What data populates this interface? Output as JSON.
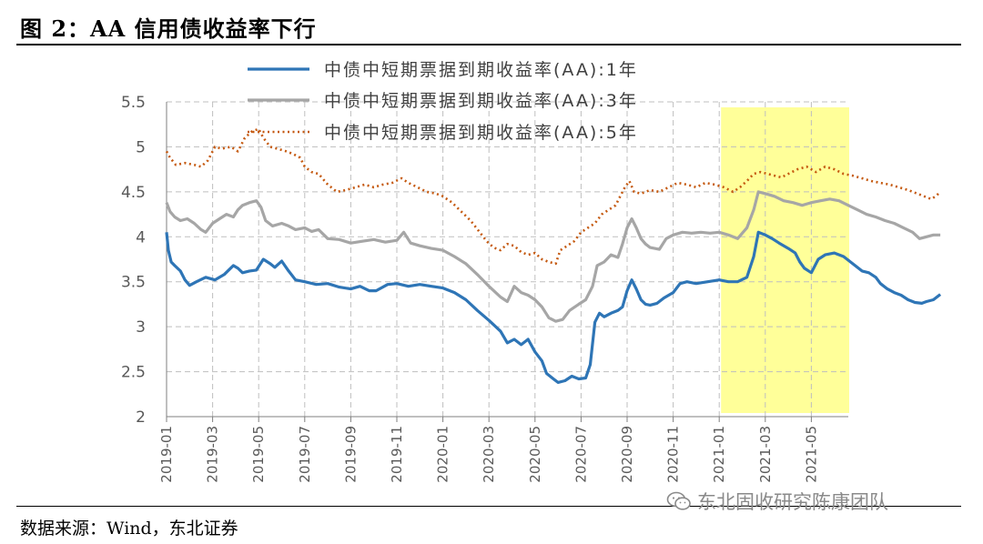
{
  "header": {
    "title": "图 2：AA 信用债收益率下行"
  },
  "footer": {
    "source": "数据来源：Wind，东北证券",
    "watermark": "东北固收研究陈康团队"
  },
  "icons": {
    "watermark_icon": "wechat-icon"
  },
  "colors": {
    "series_1y": "#2e75b6",
    "series_3y": "#a6a6a6",
    "series_5y": "#c55a11",
    "highlight": "#ffff99",
    "grid": "#bfbfbf"
  },
  "chart_data": {
    "type": "line",
    "title": "",
    "xlabel": "",
    "ylabel": "",
    "ylim": [
      2,
      5.5
    ],
    "yticks": [
      "2",
      "2.5",
      "3",
      "3.5",
      "4",
      "4.5",
      "5",
      "5.5"
    ],
    "xticks": [
      "2019-01",
      "2019-03",
      "2019-05",
      "2019-07",
      "2019-09",
      "2019-11",
      "2020-01",
      "2020-03",
      "2020-05",
      "2020-07",
      "2020-09",
      "2020-11",
      "2021-01",
      "2021-03",
      "2021-05"
    ],
    "grid": true,
    "legend_position": "top",
    "highlight_range": [
      "2021-01",
      "2021-06"
    ],
    "series": [
      {
        "name": "中债中短期票据到期收益率(AA):1年",
        "style": "solid",
        "points": [
          [
            0,
            4.05
          ],
          [
            0.08,
            3.85
          ],
          [
            0.2,
            3.72
          ],
          [
            0.35,
            3.68
          ],
          [
            0.6,
            3.62
          ],
          [
            0.8,
            3.52
          ],
          [
            1,
            3.46
          ],
          [
            1.3,
            3.5
          ],
          [
            1.7,
            3.55
          ],
          [
            2.1,
            3.52
          ],
          [
            2.5,
            3.58
          ],
          [
            2.9,
            3.68
          ],
          [
            3.1,
            3.65
          ],
          [
            3.3,
            3.6
          ],
          [
            3.6,
            3.62
          ],
          [
            3.9,
            3.63
          ],
          [
            4.2,
            3.75
          ],
          [
            4.5,
            3.7
          ],
          [
            4.7,
            3.66
          ],
          [
            5,
            3.73
          ],
          [
            5.3,
            3.62
          ],
          [
            5.6,
            3.52
          ],
          [
            6,
            3.5
          ],
          [
            6.5,
            3.47
          ],
          [
            7,
            3.48
          ],
          [
            7.5,
            3.44
          ],
          [
            8,
            3.42
          ],
          [
            8.4,
            3.45
          ],
          [
            8.8,
            3.4
          ],
          [
            9.1,
            3.4
          ],
          [
            9.6,
            3.47
          ],
          [
            10,
            3.48
          ],
          [
            10.5,
            3.45
          ],
          [
            11,
            3.47
          ],
          [
            11.5,
            3.45
          ],
          [
            12,
            3.43
          ],
          [
            12.5,
            3.38
          ],
          [
            13,
            3.3
          ],
          [
            13.5,
            3.18
          ],
          [
            14,
            3.07
          ],
          [
            14.5,
            2.95
          ],
          [
            14.8,
            2.82
          ],
          [
            15.1,
            2.86
          ],
          [
            15.4,
            2.8
          ],
          [
            15.7,
            2.86
          ],
          [
            16,
            2.72
          ],
          [
            16.3,
            2.62
          ],
          [
            16.5,
            2.48
          ],
          [
            16.8,
            2.42
          ],
          [
            17,
            2.38
          ],
          [
            17.3,
            2.4
          ],
          [
            17.6,
            2.45
          ],
          [
            17.9,
            2.42
          ],
          [
            18.2,
            2.43
          ],
          [
            18.4,
            2.58
          ],
          [
            18.6,
            3.05
          ],
          [
            18.8,
            3.15
          ],
          [
            19,
            3.11
          ],
          [
            19.3,
            3.15
          ],
          [
            19.6,
            3.18
          ],
          [
            19.8,
            3.22
          ],
          [
            20,
            3.4
          ],
          [
            20.2,
            3.52
          ],
          [
            20.4,
            3.42
          ],
          [
            20.6,
            3.3
          ],
          [
            20.8,
            3.25
          ],
          [
            21,
            3.24
          ],
          [
            21.3,
            3.26
          ],
          [
            21.6,
            3.32
          ],
          [
            22,
            3.38
          ],
          [
            22.3,
            3.48
          ],
          [
            22.6,
            3.5
          ],
          [
            23,
            3.48
          ],
          [
            23.5,
            3.5
          ],
          [
            24,
            3.52
          ],
          [
            24.4,
            3.5
          ],
          [
            24.8,
            3.5
          ],
          [
            25.2,
            3.55
          ],
          [
            25.5,
            3.78
          ],
          [
            25.7,
            4.05
          ],
          [
            26,
            4.02
          ],
          [
            26.3,
            3.98
          ],
          [
            26.6,
            3.93
          ],
          [
            27,
            3.87
          ],
          [
            27.3,
            3.82
          ],
          [
            27.5,
            3.72
          ],
          [
            27.7,
            3.65
          ],
          [
            28,
            3.6
          ],
          [
            28.3,
            3.75
          ],
          [
            28.6,
            3.8
          ],
          [
            29,
            3.82
          ],
          [
            29.4,
            3.78
          ],
          [
            29.8,
            3.7
          ],
          [
            30.2,
            3.62
          ],
          [
            30.5,
            3.6
          ],
          [
            30.8,
            3.55
          ],
          [
            31,
            3.48
          ],
          [
            31.3,
            3.42
          ],
          [
            31.6,
            3.38
          ],
          [
            31.9,
            3.35
          ],
          [
            32.2,
            3.3
          ],
          [
            32.5,
            3.27
          ],
          [
            32.8,
            3.26
          ],
          [
            33,
            3.28
          ],
          [
            33.3,
            3.3
          ],
          [
            33.6,
            3.36
          ]
        ]
      },
      {
        "name": "中债中短期票据到期收益率(AA):3年",
        "style": "solid",
        "points": [
          [
            0,
            4.38
          ],
          [
            0.15,
            4.28
          ],
          [
            0.35,
            4.22
          ],
          [
            0.6,
            4.18
          ],
          [
            0.9,
            4.2
          ],
          [
            1.2,
            4.15
          ],
          [
            1.5,
            4.08
          ],
          [
            1.7,
            4.05
          ],
          [
            2,
            4.15
          ],
          [
            2.3,
            4.2
          ],
          [
            2.6,
            4.25
          ],
          [
            2.9,
            4.22
          ],
          [
            3.1,
            4.3
          ],
          [
            3.3,
            4.35
          ],
          [
            3.6,
            4.38
          ],
          [
            3.9,
            4.4
          ],
          [
            4.1,
            4.33
          ],
          [
            4.3,
            4.18
          ],
          [
            4.6,
            4.12
          ],
          [
            5,
            4.15
          ],
          [
            5.3,
            4.12
          ],
          [
            5.6,
            4.08
          ],
          [
            6,
            4.1
          ],
          [
            6.3,
            4.06
          ],
          [
            6.6,
            4.08
          ],
          [
            7,
            3.98
          ],
          [
            7.5,
            3.97
          ],
          [
            8,
            3.93
          ],
          [
            8.5,
            3.95
          ],
          [
            9,
            3.97
          ],
          [
            9.5,
            3.94
          ],
          [
            10,
            3.96
          ],
          [
            10.3,
            4.05
          ],
          [
            10.6,
            3.93
          ],
          [
            11,
            3.9
          ],
          [
            11.5,
            3.87
          ],
          [
            12,
            3.85
          ],
          [
            12.5,
            3.78
          ],
          [
            13,
            3.7
          ],
          [
            13.5,
            3.58
          ],
          [
            14,
            3.45
          ],
          [
            14.5,
            3.33
          ],
          [
            14.8,
            3.28
          ],
          [
            15.1,
            3.45
          ],
          [
            15.4,
            3.38
          ],
          [
            15.7,
            3.35
          ],
          [
            16,
            3.3
          ],
          [
            16.3,
            3.22
          ],
          [
            16.6,
            3.1
          ],
          [
            16.9,
            3.06
          ],
          [
            17.2,
            3.08
          ],
          [
            17.5,
            3.18
          ],
          [
            17.9,
            3.25
          ],
          [
            18.2,
            3.3
          ],
          [
            18.5,
            3.45
          ],
          [
            18.7,
            3.68
          ],
          [
            19,
            3.72
          ],
          [
            19.3,
            3.8
          ],
          [
            19.6,
            3.77
          ],
          [
            19.8,
            3.92
          ],
          [
            20,
            4.1
          ],
          [
            20.2,
            4.2
          ],
          [
            20.4,
            4.1
          ],
          [
            20.6,
            3.98
          ],
          [
            20.8,
            3.92
          ],
          [
            21,
            3.88
          ],
          [
            21.4,
            3.86
          ],
          [
            21.7,
            3.98
          ],
          [
            22,
            4.02
          ],
          [
            22.4,
            4.05
          ],
          [
            22.8,
            4.04
          ],
          [
            23.2,
            4.05
          ],
          [
            23.6,
            4.04
          ],
          [
            24,
            4.05
          ],
          [
            24.4,
            4.02
          ],
          [
            24.8,
            3.98
          ],
          [
            25.2,
            4.1
          ],
          [
            25.5,
            4.3
          ],
          [
            25.7,
            4.5
          ],
          [
            26,
            4.48
          ],
          [
            26.4,
            4.45
          ],
          [
            26.8,
            4.4
          ],
          [
            27.2,
            4.38
          ],
          [
            27.6,
            4.35
          ],
          [
            28,
            4.38
          ],
          [
            28.4,
            4.4
          ],
          [
            28.8,
            4.42
          ],
          [
            29.2,
            4.4
          ],
          [
            29.6,
            4.35
          ],
          [
            30,
            4.3
          ],
          [
            30.4,
            4.25
          ],
          [
            30.8,
            4.22
          ],
          [
            31.2,
            4.18
          ],
          [
            31.6,
            4.15
          ],
          [
            32,
            4.1
          ],
          [
            32.4,
            4.05
          ],
          [
            32.7,
            3.98
          ],
          [
            33,
            4.0
          ],
          [
            33.3,
            4.02
          ],
          [
            33.6,
            4.02
          ]
        ]
      },
      {
        "name": "中债中短期票据到期收益率(AA):5年",
        "style": "dotted",
        "points": [
          [
            0,
            4.95
          ],
          [
            0.15,
            4.88
          ],
          [
            0.4,
            4.8
          ],
          [
            0.8,
            4.82
          ],
          [
            1.2,
            4.8
          ],
          [
            1.5,
            4.78
          ],
          [
            1.8,
            4.85
          ],
          [
            2.1,
            5.0
          ],
          [
            2.4,
            4.98
          ],
          [
            2.8,
            5.0
          ],
          [
            3.1,
            4.95
          ],
          [
            3.4,
            5.1
          ],
          [
            3.7,
            5.17
          ],
          [
            4,
            5.2
          ],
          [
            4.2,
            5.1
          ],
          [
            4.5,
            5.0
          ],
          [
            4.8,
            4.98
          ],
          [
            5.2,
            4.95
          ],
          [
            5.5,
            4.92
          ],
          [
            5.8,
            4.88
          ],
          [
            6,
            4.78
          ],
          [
            6.3,
            4.72
          ],
          [
            6.6,
            4.7
          ],
          [
            7,
            4.58
          ],
          [
            7.4,
            4.5
          ],
          [
            7.8,
            4.52
          ],
          [
            8.2,
            4.55
          ],
          [
            8.6,
            4.58
          ],
          [
            9,
            4.55
          ],
          [
            9.4,
            4.58
          ],
          [
            9.8,
            4.6
          ],
          [
            10.2,
            4.65
          ],
          [
            10.5,
            4.6
          ],
          [
            10.9,
            4.55
          ],
          [
            11.3,
            4.5
          ],
          [
            11.7,
            4.48
          ],
          [
            12,
            4.45
          ],
          [
            12.4,
            4.38
          ],
          [
            12.8,
            4.28
          ],
          [
            13.2,
            4.18
          ],
          [
            13.6,
            4.05
          ],
          [
            13.9,
            3.95
          ],
          [
            14.2,
            3.88
          ],
          [
            14.5,
            3.85
          ],
          [
            14.8,
            3.92
          ],
          [
            15.1,
            3.9
          ],
          [
            15.4,
            3.83
          ],
          [
            15.7,
            3.8
          ],
          [
            16,
            3.82
          ],
          [
            16.3,
            3.75
          ],
          [
            16.6,
            3.72
          ],
          [
            16.9,
            3.7
          ],
          [
            17.1,
            3.85
          ],
          [
            17.4,
            3.9
          ],
          [
            17.7,
            3.95
          ],
          [
            18,
            4.05
          ],
          [
            18.3,
            4.1
          ],
          [
            18.6,
            4.15
          ],
          [
            18.9,
            4.25
          ],
          [
            19.2,
            4.3
          ],
          [
            19.5,
            4.35
          ],
          [
            19.7,
            4.45
          ],
          [
            19.9,
            4.55
          ],
          [
            20.1,
            4.62
          ],
          [
            20.3,
            4.5
          ],
          [
            20.6,
            4.48
          ],
          [
            21,
            4.52
          ],
          [
            21.4,
            4.5
          ],
          [
            21.8,
            4.55
          ],
          [
            22.2,
            4.6
          ],
          [
            22.6,
            4.58
          ],
          [
            23,
            4.55
          ],
          [
            23.4,
            4.6
          ],
          [
            23.8,
            4.58
          ],
          [
            24.2,
            4.55
          ],
          [
            24.6,
            4.5
          ],
          [
            24.9,
            4.55
          ],
          [
            25.2,
            4.62
          ],
          [
            25.5,
            4.7
          ],
          [
            25.8,
            4.72
          ],
          [
            26.1,
            4.7
          ],
          [
            26.4,
            4.68
          ],
          [
            26.7,
            4.66
          ],
          [
            27,
            4.7
          ],
          [
            27.4,
            4.75
          ],
          [
            27.8,
            4.78
          ],
          [
            28.2,
            4.72
          ],
          [
            28.6,
            4.78
          ],
          [
            29,
            4.75
          ],
          [
            29.4,
            4.7
          ],
          [
            29.8,
            4.68
          ],
          [
            30.2,
            4.65
          ],
          [
            30.6,
            4.62
          ],
          [
            31,
            4.6
          ],
          [
            31.4,
            4.58
          ],
          [
            31.8,
            4.55
          ],
          [
            32.2,
            4.52
          ],
          [
            32.6,
            4.48
          ],
          [
            32.9,
            4.45
          ],
          [
            33.2,
            4.42
          ],
          [
            33.4,
            4.45
          ],
          [
            33.6,
            4.5
          ]
        ]
      }
    ]
  }
}
